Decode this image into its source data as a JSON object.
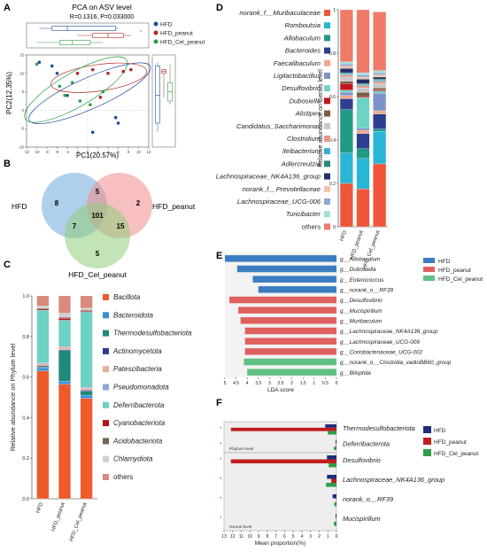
{
  "panels": {
    "A": {
      "letter": "A",
      "title": "PCA on ASV level",
      "stats": "R=0.1316, P=0.033000",
      "xlabel": "PC1(20.57%)",
      "ylabel": "PC2(12.35%)",
      "legend": [
        {
          "name": "HFD",
          "color": "#1f4e9c"
        },
        {
          "name": "HFD_peanut",
          "color": "#b22222"
        },
        {
          "name": "HFD_Cel_peanut",
          "color": "#2e9e46"
        }
      ]
    },
    "B": {
      "letter": "B",
      "sets": [
        "HFD",
        "HFD_peanut",
        "HFD_Cel_peanut"
      ],
      "counts": {
        "HFD": "8",
        "HFD_peanut": "2",
        "HFD_Cel_peanut": "5",
        "HFD&HFD_peanut": "5",
        "HFD&HFD_Cel_peanut": "7",
        "HFD_peanut&HFD_Cel_peanut": "15",
        "all": "101"
      }
    },
    "C": {
      "letter": "C"
    },
    "D": {
      "letter": "D"
    },
    "E": {
      "letter": "E"
    },
    "F": {
      "letter": "F"
    }
  },
  "chart_data": [
    {
      "panel": "A",
      "type": "scatter",
      "title": "PCA on ASV level",
      "xlabel": "PC1(20.57%)",
      "ylabel": "PC2(12.35%)",
      "xlim": [
        -12,
        12
      ],
      "ylim": [
        -10,
        15
      ],
      "series": [
        {
          "name": "HFD",
          "x": [
            -9.5,
            -7,
            -6,
            -4,
            5.5,
            6,
            1
          ],
          "y": [
            13,
            12,
            10,
            4,
            -2,
            -3.5,
            -6
          ]
        },
        {
          "name": "HFD_peanut",
          "x": [
            -2,
            1,
            4,
            7,
            8.5,
            2.5
          ],
          "y": [
            10,
            11,
            10,
            10.5,
            11,
            3.5
          ]
        },
        {
          "name": "HFD_Cel_peanut",
          "x": [
            -10,
            -5.5,
            -4.5,
            -1.5,
            0.5,
            3,
            -3
          ],
          "y": [
            12.5,
            6.5,
            4,
            2.5,
            1.5,
            5,
            7.5
          ]
        }
      ]
    },
    {
      "panel": "B",
      "type": "venn",
      "sets": [
        "HFD",
        "HFD_peanut",
        "HFD_Cel_peanut"
      ],
      "regions": {
        "HFD_only": 8,
        "HFD_peanut_only": 2,
        "HFD_Cel_peanut_only": 5,
        "HFD_and_HFD_peanut": 5,
        "HFD_and_HFD_Cel_peanut": 7,
        "HFD_peanut_and_HFD_Cel_peanut": 15,
        "all_three": 101
      }
    },
    {
      "panel": "C",
      "type": "bar",
      "stacked": true,
      "ylabel": "Relative abundance on Phylum level",
      "ylim": [
        0,
        1
      ],
      "yticks": [
        "0.0",
        "0.2",
        "0.4",
        "0.6",
        "0.8",
        "1.0"
      ],
      "categories": [
        "HFD",
        "HFD_peanut",
        "HFD_Cel_peanut"
      ],
      "series": [
        {
          "name": "Bacillota",
          "color": "#ee5a2c",
          "values": [
            0.63,
            0.565,
            0.495
          ]
        },
        {
          "name": "Bacteroidota",
          "color": "#3c8fd0",
          "values": [
            0.015,
            0.015,
            0.015
          ]
        },
        {
          "name": "Thermodesulfobacteriota",
          "color": "#1d8a7a",
          "values": [
            0.005,
            0.15,
            0.02
          ]
        },
        {
          "name": "Actinomycetota",
          "color": "#2f3e8c",
          "values": [
            0.005,
            0.005,
            0.005
          ]
        },
        {
          "name": "Patescibacteria",
          "color": "#e8b096",
          "values": [
            0.01,
            0.01,
            0.01
          ]
        },
        {
          "name": "Pseudomonadota",
          "color": "#8fa6d6",
          "values": [
            0.005,
            0.005,
            0.005
          ]
        },
        {
          "name": "Deferribacterota",
          "color": "#6fd0c4",
          "values": [
            0.26,
            0.13,
            0.37
          ]
        },
        {
          "name": "Cyanobacteriota",
          "color": "#b0151b",
          "values": [
            0.005,
            0.01,
            0.005
          ]
        },
        {
          "name": "Acidobacteriota",
          "color": "#7b6450",
          "values": [
            0.005,
            0.005,
            0.005
          ]
        },
        {
          "name": "Chlamydiota",
          "color": "#d0d0d0",
          "values": [
            0.01,
            0.02,
            0.01
          ]
        },
        {
          "name": "others",
          "color": "#d88a7c",
          "values": [
            0.05,
            0.085,
            0.06
          ]
        }
      ]
    },
    {
      "panel": "D",
      "type": "bar",
      "stacked": true,
      "ylabel": "Relative abundance on Genus level",
      "ylim": [
        0,
        1
      ],
      "yticks": [
        "0",
        "0.2",
        "0.4",
        "0.6",
        "0.8",
        "1"
      ],
      "categories": [
        "HFD",
        "HFD_peanut",
        "HFD_Cel_peanut"
      ],
      "series": [
        {
          "name": "norank_f__Muribaculaceae",
          "color": "#f0553a",
          "values": [
            0.2,
            0.175,
            0.29
          ]
        },
        {
          "name": "Romboutsia",
          "color": "#29b5d6",
          "values": [
            0.14,
            0.14,
            0.15
          ]
        },
        {
          "name": "Allobaculum",
          "color": "#1f9a87",
          "values": [
            0.2,
            0.045,
            0.01
          ]
        },
        {
          "name": "Bacteroides",
          "color": "#2e3f8f",
          "values": [
            0.05,
            0.07,
            0.07
          ]
        },
        {
          "name": "Faecalibaculum",
          "color": "#f0a88c",
          "values": [
            0.015,
            0.015,
            0.015
          ]
        },
        {
          "name": "Ligilactobacillus",
          "color": "#7d93c8",
          "values": [
            0.015,
            0.01,
            0.08
          ]
        },
        {
          "name": "Desulfovibrio",
          "color": "#6cd4c6",
          "values": [
            0.01,
            0.14,
            0.01
          ]
        },
        {
          "name": "Dubosiella",
          "color": "#c0161c",
          "values": [
            0.03,
            0.005,
            0.005
          ]
        },
        {
          "name": "Alistipes",
          "color": "#7d5c44",
          "values": [
            0.01,
            0.02,
            0.01
          ]
        },
        {
          "name": "Candidatus_Saccharimonas",
          "color": "#c8c8c8",
          "values": [
            0.02,
            0.02,
            0.02
          ]
        },
        {
          "name": "Clostridium",
          "color": "#e89888",
          "values": [
            0.01,
            0.01,
            0.01
          ]
        },
        {
          "name": "Ileibacterium",
          "color": "#3aaed8",
          "values": [
            0.005,
            0.005,
            0.005
          ]
        },
        {
          "name": "Adlercreutzia",
          "color": "#268a7a",
          "values": [
            0.005,
            0.005,
            0.005
          ]
        },
        {
          "name": "Lachnospiraceae_NK4A136_group",
          "color": "#23306a",
          "values": [
            0.02,
            0.02,
            0.01
          ]
        },
        {
          "name": "norank_f__Prevotellaceae",
          "color": "#f5c0a8",
          "values": [
            0.01,
            0.01,
            0.01
          ]
        },
        {
          "name": "Lachnospiraceae_UCG-006",
          "color": "#8ea8cf",
          "values": [
            0.01,
            0.01,
            0.01
          ]
        },
        {
          "name": "Turicibacter",
          "color": "#9ee0d8",
          "values": [
            0.01,
            0.01,
            0.01
          ]
        },
        {
          "name": "others",
          "color": "#ef7a68",
          "values": [
            0.24,
            0.29,
            0.27
          ]
        }
      ]
    },
    {
      "panel": "E",
      "type": "bar",
      "orientation": "horizontal",
      "xlabel": "LDA score",
      "xticks": [
        "5",
        "4.5",
        "4",
        "3.5",
        "3",
        "2.5",
        "2",
        "1.5",
        "1",
        "0.5",
        "0"
      ],
      "xlim": [
        5,
        0
      ],
      "categories": [
        "g__Allobaculum",
        "g__Dubosiella",
        "g__Enterococcus",
        "g__norank_o__RF39",
        "g__Desulfovibrio",
        "g__Mucispirillum",
        "g__Muribaculum",
        "g__Lachnospiraceae_NK4A136_group",
        "g__Lachnospiraceae_UCG-006",
        "g__Coriobacteriaceae_UCG-002",
        "g__norank_o__Clostridia_vadinBB60_group",
        "g__Bilophila"
      ],
      "groups": [
        "HFD",
        "HFD",
        "HFD",
        "HFD",
        "HFD_peanut",
        "HFD_peanut",
        "HFD_peanut",
        "HFD_peanut",
        "HFD_peanut",
        "HFD_peanut",
        "HFD_Cel_peanut",
        "HFD_Cel_peanut"
      ],
      "values": [
        5.0,
        4.45,
        3.75,
        3.5,
        4.8,
        4.4,
        4.3,
        4.1,
        4.1,
        4.1,
        4.15,
        4.0
      ],
      "legend": [
        {
          "name": "HFD",
          "color": "#3a7dc0"
        },
        {
          "name": "HFD_peanut",
          "color": "#e06060"
        },
        {
          "name": "HFD_Cel_peanut",
          "color": "#5fc082"
        }
      ]
    },
    {
      "panel": "F",
      "type": "bar",
      "orientation": "horizontal",
      "xlabel": "Mean proportion(%)",
      "xticks": [
        "13",
        "12",
        "11",
        "10",
        "9",
        "8",
        "7",
        "6",
        "5",
        "4",
        "3",
        "2",
        "1",
        "0"
      ],
      "xlim": [
        13,
        0
      ],
      "subpanels": [
        {
          "label": "Phylum level",
          "categories": [
            "Thermodesulfobacteriota",
            "Deferribacterota"
          ],
          "series": [
            {
              "name": "HFD",
              "values": [
                1.3,
                0.1
              ]
            },
            {
              "name": "HFD_peanut",
              "values": [
                12.2,
                0.05
              ]
            },
            {
              "name": "HFD_Cel_peanut",
              "values": [
                1.0,
                0.3
              ]
            }
          ]
        },
        {
          "label": "Genus level",
          "categories": [
            "Desulfovibrio",
            "Lachnospiraceae_NK4A136_group",
            "norank_o__RF39",
            "Mucispirillum"
          ],
          "series": [
            {
              "name": "HFD",
              "values": [
                1.1,
                1.1,
                0.45,
                0.1
              ]
            },
            {
              "name": "HFD_peanut",
              "values": [
                12.2,
                0.6,
                0.05,
                0.05
              ]
            },
            {
              "name": "HFD_Cel_peanut",
              "values": [
                0.9,
                1.2,
                0.25,
                0.3
              ]
            }
          ]
        }
      ],
      "legend": [
        {
          "name": "HFD",
          "color": "#1f2e7a"
        },
        {
          "name": "HFD_peanut",
          "color": "#c01d1d"
        },
        {
          "name": "HFD_Cel_peanut",
          "color": "#2e9e46"
        }
      ]
    }
  ]
}
